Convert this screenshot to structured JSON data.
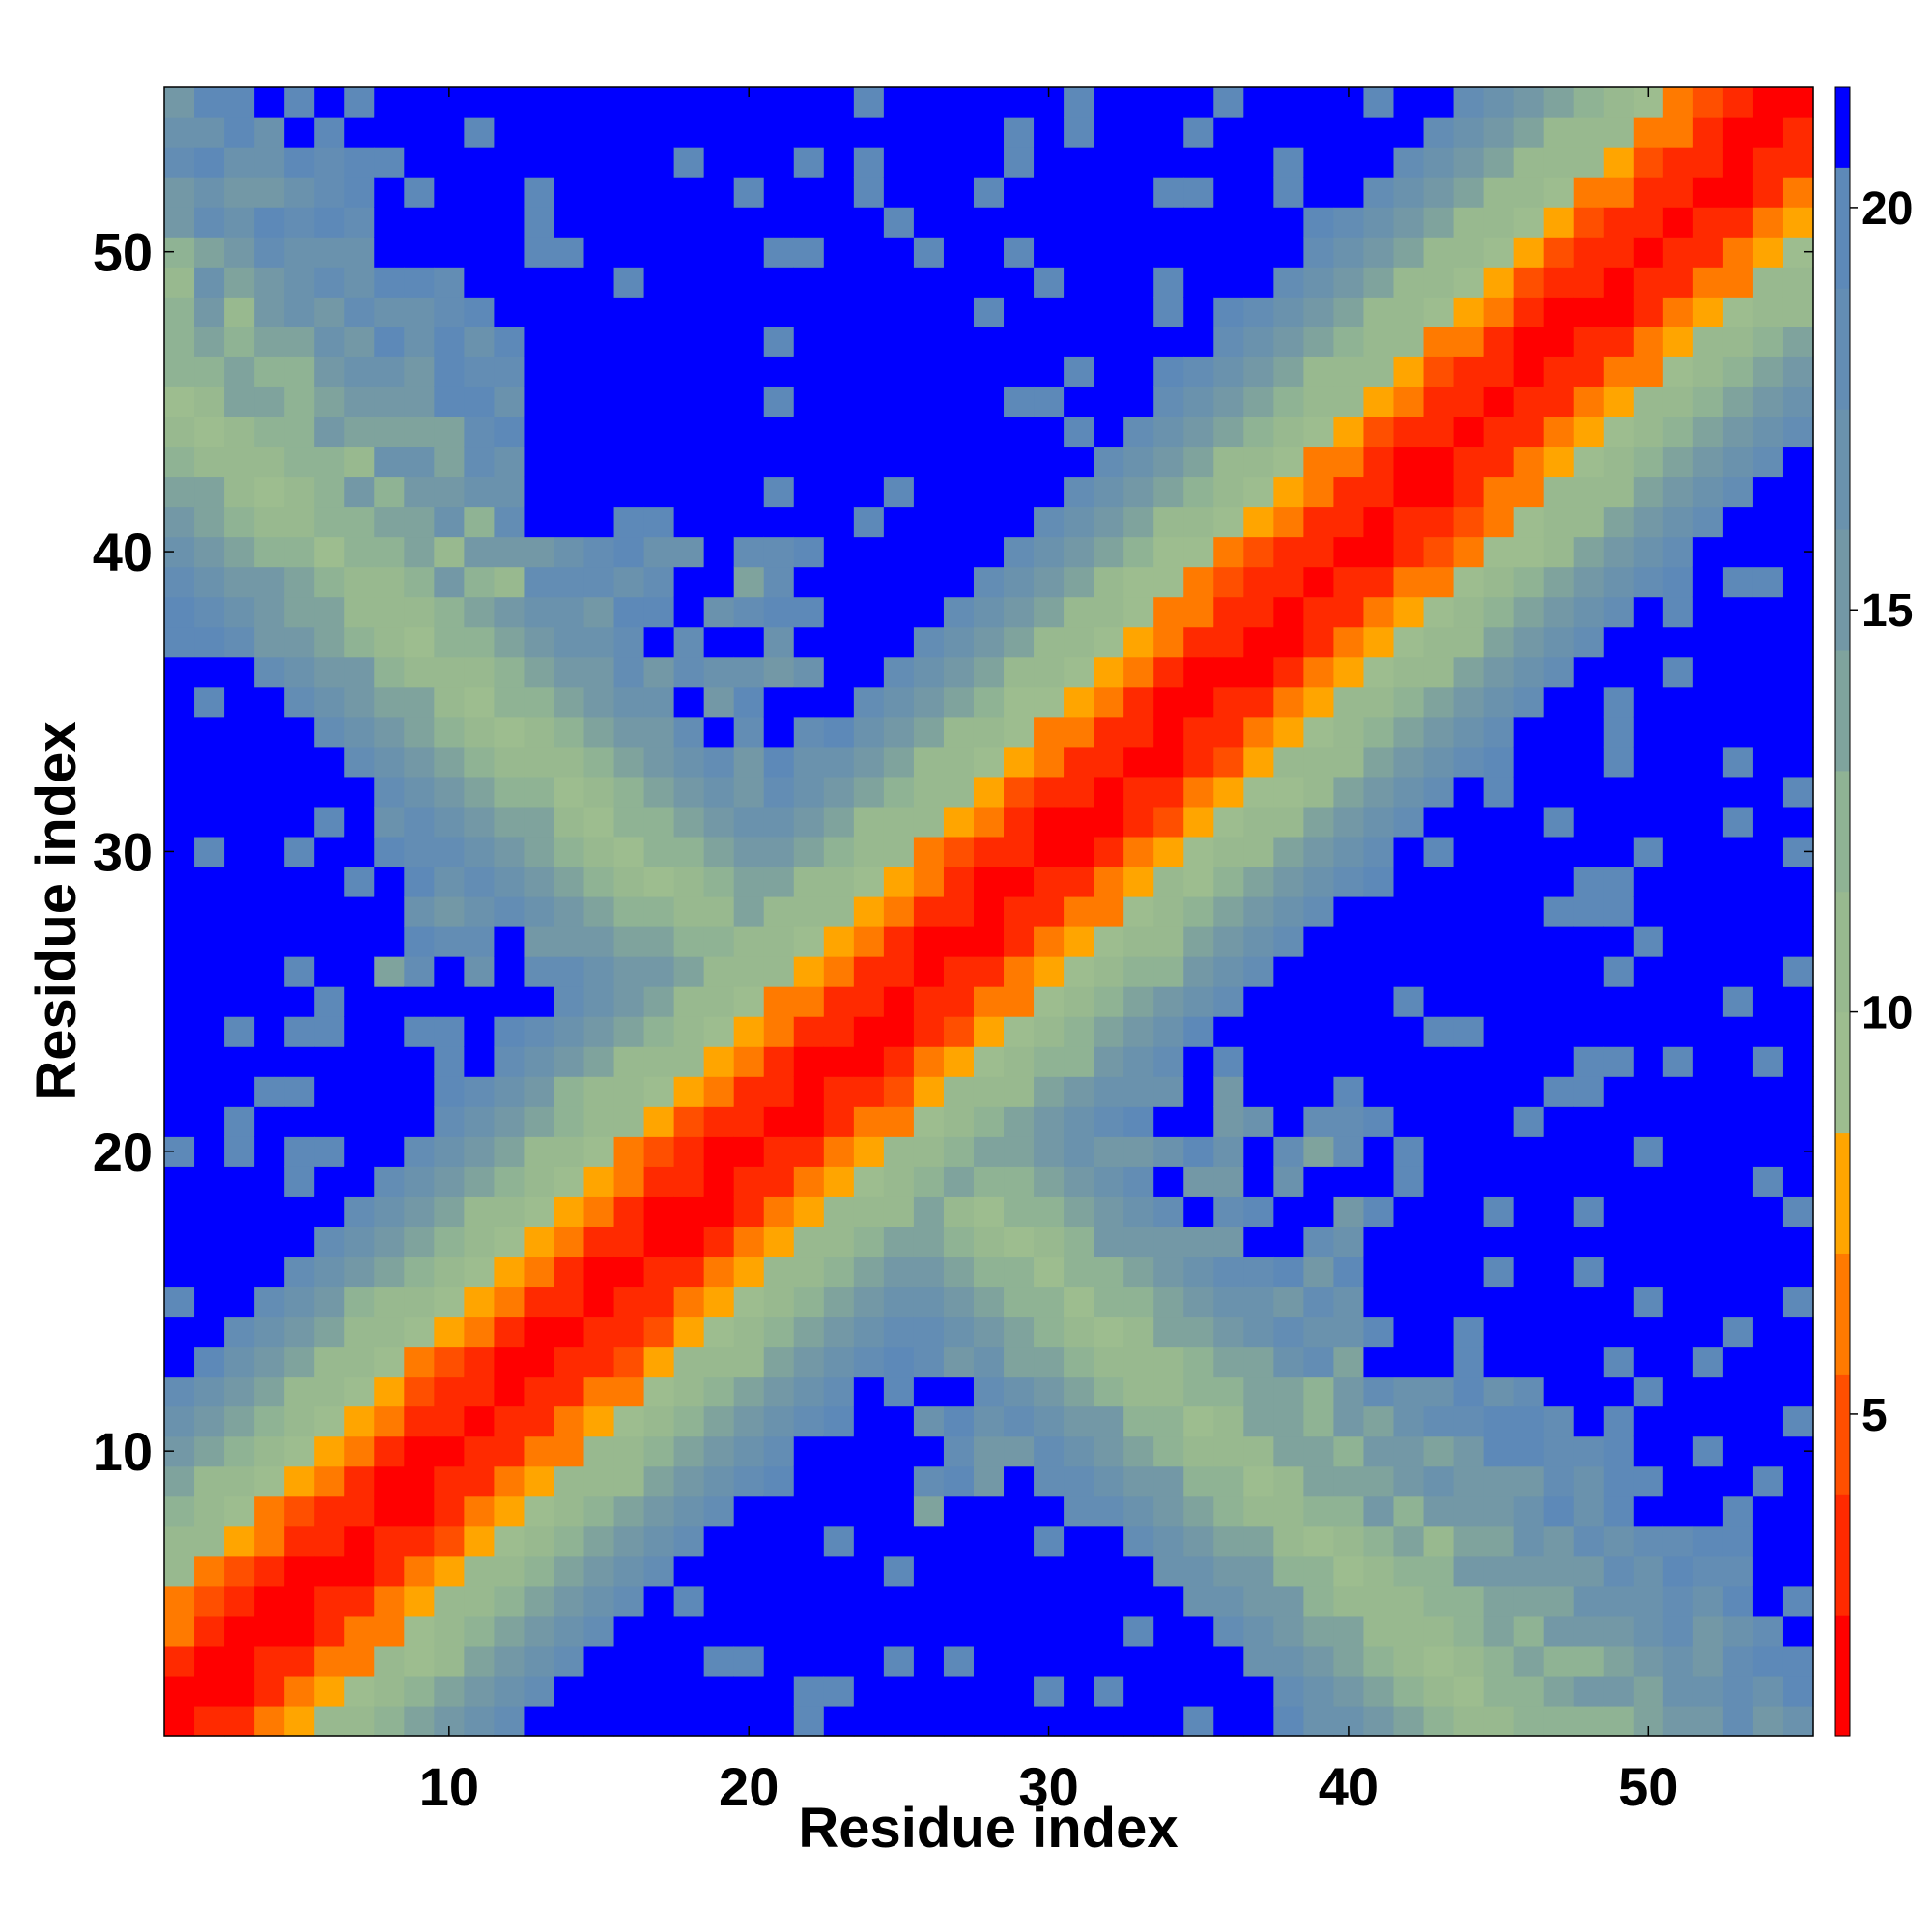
{
  "chart_data": {
    "type": "heatmap",
    "title": "",
    "xlabel": "Residue index",
    "ylabel": "Residue index",
    "x_range": [
      0.5,
      55.5
    ],
    "y_range": [
      0.5,
      55.5
    ],
    "x_ticks": [
      10,
      20,
      30,
      40,
      50
    ],
    "y_ticks": [
      10,
      20,
      30,
      40,
      50
    ],
    "n_residues": 55,
    "colorbar": {
      "range": [
        1,
        21.5
      ],
      "ticks": [
        5,
        10,
        15,
        20
      ],
      "bins": [
        {
          "from": 1,
          "to": 2.5,
          "color": "#ff0000"
        },
        {
          "from": 2.5,
          "to": 4,
          "color": "#ff2a00"
        },
        {
          "from": 4,
          "to": 5.5,
          "color": "#ff4f00"
        },
        {
          "from": 5.5,
          "to": 7,
          "color": "#ff7a00"
        },
        {
          "from": 7,
          "to": 8.5,
          "color": "#ffa500"
        },
        {
          "from": 8.5,
          "to": 10,
          "color": "#9dbd8f"
        },
        {
          "from": 10,
          "to": 11.5,
          "color": "#98b98f"
        },
        {
          "from": 11.5,
          "to": 13,
          "color": "#8fb394"
        },
        {
          "from": 13,
          "to": 14.5,
          "color": "#7fa39d"
        },
        {
          "from": 14.5,
          "to": 16,
          "color": "#7398a6"
        },
        {
          "from": 16,
          "to": 17.5,
          "color": "#6a92ad"
        },
        {
          "from": 17.5,
          "to": 19,
          "color": "#638db4"
        },
        {
          "from": 19,
          "to": 20.5,
          "color": "#5d89b8"
        },
        {
          "from": 20.5,
          "to": 21.5,
          "color": "#0000ff"
        }
      ]
    },
    "grid": false,
    "description_of_values": "distance-like matrix between residues; diagonal band low values (red), off-diagonal bands higher, far regions saturate at max (blue)"
  }
}
